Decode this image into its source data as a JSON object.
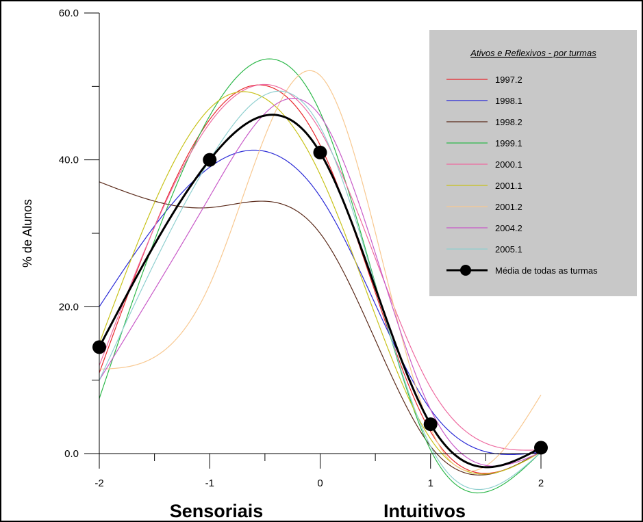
{
  "chart_data": {
    "type": "line",
    "ylabel": "% de Alunos",
    "xlabel_left": "Sensoriais",
    "xlabel_right": "Intuitivos",
    "x": [
      -2,
      -1,
      0,
      1,
      2
    ],
    "xlim": [
      -2,
      2
    ],
    "ylim": [
      0,
      60
    ],
    "y_ticks": [
      "0.0",
      "20.0",
      "40.0",
      "60.0"
    ],
    "x_ticks": [
      "-2",
      "-1",
      "0",
      "1",
      "2"
    ],
    "grid": false,
    "legend": {
      "title": "Ativos e Reflexivos - por turmas",
      "placement": "top-right"
    },
    "series": [
      {
        "name": "1997.2",
        "color": "#e8262b",
        "values": [
          11,
          45.5,
          42,
          3,
          0.3
        ],
        "width": 1.2
      },
      {
        "name": "1998.1",
        "color": "#2a2ad6",
        "values": [
          20,
          39,
          35,
          6,
          0.2
        ],
        "width": 1.2
      },
      {
        "name": "1998.2",
        "color": "#5a2a1a",
        "values": [
          37,
          33.5,
          30,
          1,
          0.3
        ],
        "width": 1.2
      },
      {
        "name": "1999.1",
        "color": "#2db84a",
        "values": [
          7.5,
          46,
          46.5,
          0.5,
          0.2
        ],
        "width": 1.2
      },
      {
        "name": "2000.1",
        "color": "#ee6aa0",
        "values": [
          12,
          45,
          44,
          9,
          0.5
        ],
        "width": 1.2
      },
      {
        "name": "2001.1",
        "color": "#c8c21a",
        "values": [
          15,
          47,
          38,
          2,
          0.2
        ],
        "width": 1.2
      },
      {
        "name": "2001.2",
        "color": "#f8c890",
        "values": [
          11.5,
          23,
          51.5,
          3.5,
          8
        ],
        "width": 1.2
      },
      {
        "name": "2004.2",
        "color": "#c85ac8",
        "values": [
          10,
          35,
          46,
          6,
          0.2
        ],
        "width": 1.2
      },
      {
        "name": "2005.1",
        "color": "#8ecfcf",
        "values": [
          10,
          40,
          44.5,
          1,
          0.2
        ],
        "width": 1.2
      },
      {
        "name": "Média de todas as turmas",
        "color": "#000000",
        "values": [
          14.5,
          40,
          41,
          4,
          0.8
        ],
        "width": 3,
        "markers": true
      }
    ]
  }
}
